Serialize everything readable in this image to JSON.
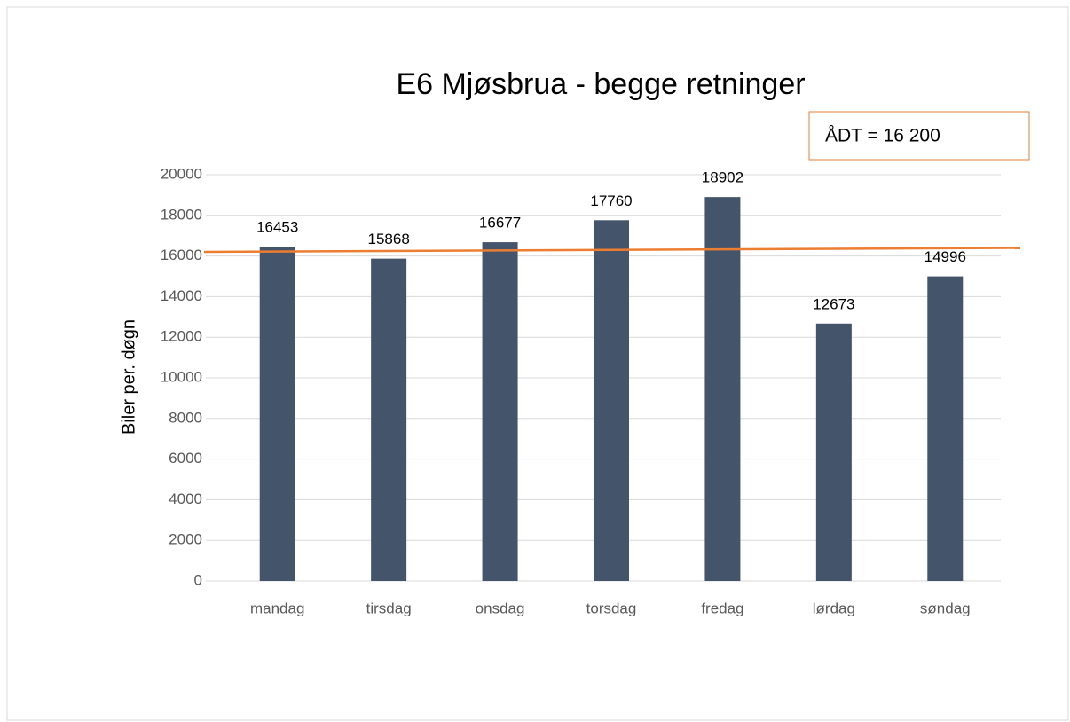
{
  "chart_data": {
    "type": "bar",
    "title": "E6 Mjøsbrua - begge retninger",
    "y_label": "Biler per. døgn",
    "annotation": "ÅDT = 16 200",
    "categories": [
      "mandag",
      "tirsdag",
      "onsdag",
      "torsdag",
      "fredag",
      "lørdag",
      "søndag"
    ],
    "values": [
      16453,
      15868,
      16677,
      17760,
      18902,
      12673,
      14996
    ],
    "color": "#44546a",
    "reference_line": {
      "values": [
        16200,
        16400
      ],
      "color": "#ed7d31"
    },
    "ylim": [
      0,
      20000
    ],
    "yticks": [
      0,
      2000,
      4000,
      6000,
      8000,
      10000,
      12000,
      14000,
      16000,
      18000,
      20000
    ],
    "grid": true
  }
}
